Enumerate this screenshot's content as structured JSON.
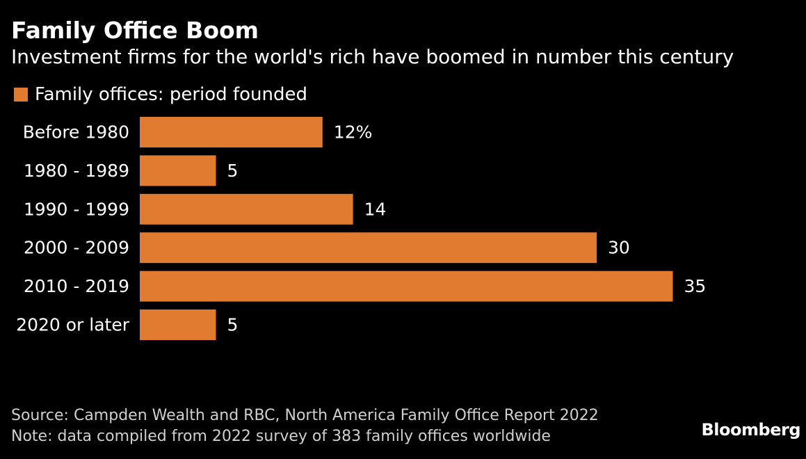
{
  "title": "Family Office Boom",
  "subtitle": "Investment firms for the world's rich have boomed in number this century",
  "legend": {
    "label": "Family offices: period founded"
  },
  "colors": {
    "background": "#000000",
    "bar": "#E07B30",
    "text": "#ffffff"
  },
  "chart_data": {
    "type": "bar",
    "orientation": "horizontal",
    "categories": [
      "Before 1980",
      "1980 - 1989",
      "1990 - 1999",
      "2000 - 2009",
      "2010 - 2019",
      "2020 or later"
    ],
    "series": [
      {
        "name": "Family offices: period founded",
        "values": [
          12,
          5,
          14,
          30,
          35,
          5
        ]
      }
    ],
    "data_labels": [
      "12%",
      "5",
      "14",
      "30",
      "35",
      "5"
    ],
    "unit": "%",
    "xlim": [
      0,
      35
    ],
    "grid": false,
    "legend_position": "top-left"
  },
  "footer": {
    "source": "Source: Campden Wealth and RBC, North America Family Office Report 2022",
    "note": "Note: data compiled from 2022 survey of 383 family offices worldwide",
    "brand": "Bloomberg"
  }
}
